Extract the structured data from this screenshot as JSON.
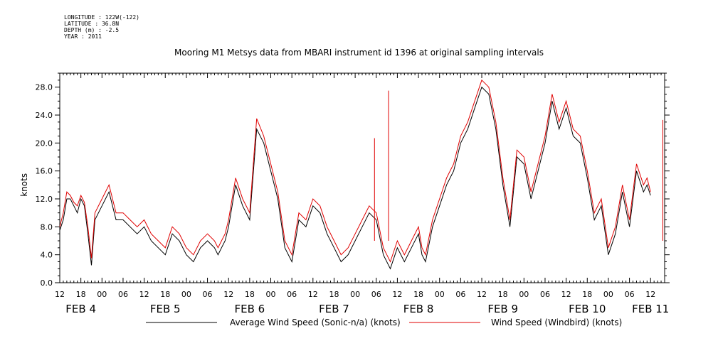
{
  "meta": {
    "longitude": "LONGITUDE : 122W(-122)",
    "latitude": "LATITUDE : 36.8N",
    "depth": "DEPTH (m) : -2.5",
    "year": "YEAR : 2011"
  },
  "chart_data": {
    "type": "line",
    "title": "Mooring M1 Metsys data from MBARI instrument id 1396 at original sampling intervals",
    "ylabel": "knots",
    "xlabel": "",
    "ylim": [
      0,
      30
    ],
    "xlim_hours": [
      0,
      168
    ],
    "x_unit": "hours since FEB 4 12:00",
    "yticks": [
      0.0,
      4.0,
      8.0,
      12.0,
      16.0,
      20.0,
      24.0,
      28.0
    ],
    "ytick_labels": [
      "0.0",
      "4.0",
      "8.0",
      "12.0",
      "16.0",
      "20.0",
      "24.0",
      "28.0"
    ],
    "xtick_labels": [
      "12",
      "18",
      "00",
      "06",
      "12",
      "18",
      "00",
      "06",
      "12",
      "18",
      "00",
      "06",
      "12",
      "18",
      "00",
      "06",
      "12",
      "18",
      "00",
      "06",
      "12",
      "18",
      "00",
      "06",
      "12",
      "18",
      "00",
      "06",
      "12"
    ],
    "date_labels": [
      {
        "label": "FEB  4",
        "hour": 6
      },
      {
        "label": "FEB  5",
        "hour": 30
      },
      {
        "label": "FEB  6",
        "hour": 54
      },
      {
        "label": "FEB  7",
        "hour": 78
      },
      {
        "label": "FEB  8",
        "hour": 102
      },
      {
        "label": "FEB  9",
        "hour": 126
      },
      {
        "label": "FEB 10",
        "hour": 150
      },
      {
        "label": "FEB 11",
        "hour": 168
      }
    ],
    "series": [
      {
        "name": "Average Wind Speed (Sonic-n/a) (knots)",
        "color": "#000000",
        "x": [
          0,
          1,
          2,
          3,
          4,
          5,
          6,
          7,
          8,
          9,
          10,
          12,
          14,
          16,
          18,
          20,
          22,
          24,
          26,
          28,
          30,
          32,
          34,
          36,
          38,
          40,
          42,
          44,
          45,
          46,
          47,
          48,
          50,
          52,
          54,
          56,
          58,
          60,
          62,
          64,
          66,
          68,
          70,
          72,
          74,
          76,
          78,
          80,
          82,
          84,
          86,
          88,
          90,
          92,
          94,
          96,
          98,
          100,
          102,
          103,
          104,
          106,
          108,
          110,
          112,
          114,
          116,
          118,
          120,
          122,
          124,
          126,
          128,
          130,
          132,
          134,
          136,
          138,
          140,
          142,
          144,
          146,
          148,
          150,
          152,
          154,
          156,
          158,
          160,
          162,
          164,
          166,
          167,
          168
        ],
        "y": [
          7.5,
          9,
          12,
          12,
          11,
          10,
          12,
          11,
          7,
          2.5,
          9,
          11,
          13,
          9,
          9,
          8,
          7,
          8,
          6,
          5,
          4,
          7,
          6,
          4,
          3,
          5,
          6,
          5,
          4,
          5,
          6,
          8,
          14,
          11,
          9,
          22,
          20,
          16,
          12,
          5,
          3,
          9,
          8,
          11,
          10,
          7,
          5,
          3,
          4,
          6,
          8,
          10,
          9,
          4,
          2,
          5,
          3,
          5,
          7,
          4,
          3,
          8,
          11,
          14,
          16,
          20,
          22,
          25,
          28,
          27,
          22,
          14,
          8,
          18,
          17,
          12,
          16,
          20,
          26,
          22,
          25,
          21,
          20,
          15,
          9,
          11,
          4,
          7,
          13,
          8,
          16,
          13,
          14,
          12.5
        ]
      },
      {
        "name": "Wind Speed (Windbird) (knots)",
        "color": "#e00000",
        "x": [
          0,
          1,
          2,
          3,
          4,
          5,
          6,
          7,
          8,
          9,
          10,
          12,
          14,
          16,
          18,
          20,
          22,
          24,
          26,
          28,
          30,
          32,
          34,
          36,
          38,
          40,
          42,
          44,
          45,
          46,
          47,
          48,
          50,
          52,
          54,
          56,
          58,
          60,
          62,
          64,
          66,
          68,
          70,
          72,
          74,
          76,
          78,
          80,
          82,
          84,
          86,
          88,
          90,
          92,
          94,
          96,
          98,
          100,
          102,
          103,
          104,
          106,
          108,
          110,
          112,
          114,
          116,
          118,
          120,
          122,
          124,
          126,
          128,
          130,
          132,
          134,
          136,
          138,
          140,
          142,
          144,
          146,
          148,
          150,
          152,
          154,
          156,
          158,
          160,
          162,
          164,
          166,
          167,
          168
        ],
        "y": [
          8,
          10,
          13,
          12.5,
          11.5,
          11,
          12.5,
          11.5,
          8,
          3.5,
          10,
          12,
          14,
          10,
          10,
          9,
          8,
          9,
          7,
          6,
          5,
          8,
          7,
          5,
          4,
          6,
          7,
          6,
          5,
          6,
          7,
          9,
          15,
          12,
          10,
          23.5,
          21,
          17,
          13,
          6,
          4,
          10,
          9,
          12,
          11,
          8,
          6,
          4,
          5,
          7,
          9,
          11,
          10,
          5,
          3,
          6,
          4,
          6,
          8,
          5,
          4,
          9,
          12,
          15,
          17,
          21,
          23,
          26,
          29,
          28,
          23,
          15,
          9,
          19,
          18,
          13,
          17,
          21,
          27,
          23,
          26,
          22,
          21,
          16,
          10,
          12,
          5,
          8,
          14,
          9,
          17,
          14,
          15,
          13
        ]
      }
    ],
    "spikes": [
      {
        "series": "Wind Speed (Windbird) (knots)",
        "hour": 93.5,
        "value": 27.5
      },
      {
        "series": "Wind Speed (Windbird) (knots)",
        "hour": 89.5,
        "value": 20.7
      },
      {
        "series": "Wind Speed (Windbird) (knots)",
        "hour": 171.5,
        "value": 23.3
      }
    ]
  }
}
